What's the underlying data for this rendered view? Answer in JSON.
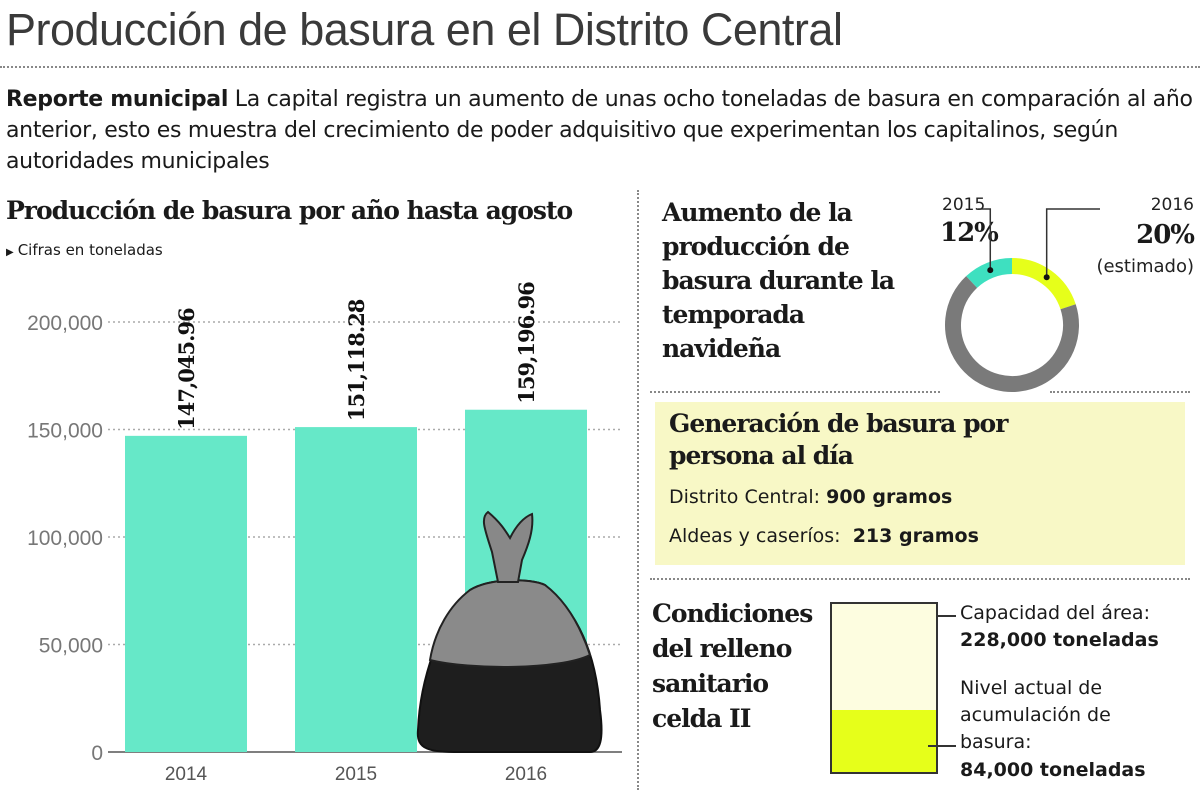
{
  "title": "Producción de basura en el Distrito Central",
  "lead": {
    "kicker": "Reporte municipal",
    "text": " La capital registra un aumento de unas ocho toneladas de basura en comparación al año anterior, esto es muestra del crecimiento de poder adquisitivo que experimentan los capitalinos, según autoridades municipales"
  },
  "colors": {
    "bar": "#66e8c8",
    "teal": "#3ee0c0",
    "yellow": "#e6ff1a",
    "gray": "#7a7a7a",
    "box": "#f8f8c6"
  },
  "chart_data": [
    {
      "type": "bar",
      "title": "Producción de basura por año hasta agosto",
      "subtitle": "Cifras en toneladas",
      "categories": [
        "2014",
        "2015",
        "2016"
      ],
      "values": [
        147045.96,
        151118.28,
        159196.96
      ],
      "value_labels": [
        "147,045.96",
        "151,118.28",
        "159,196.96"
      ],
      "ylim": [
        0,
        200000
      ],
      "yticks": [
        0,
        50000,
        100000,
        150000,
        200000
      ],
      "ytick_labels": [
        "0",
        "50,000",
        "100,000",
        "150,000",
        "200,000"
      ],
      "grid": true,
      "illustration": "trash-bag"
    },
    {
      "type": "pie",
      "title": "Aumento de la producción de basura durante la temporada navideña",
      "variant": "donut",
      "slices": [
        {
          "label": "2015",
          "value": 12,
          "value_label": "12%",
          "note": "",
          "color": "#3ee0c0"
        },
        {
          "label": "2016",
          "value": 20,
          "value_label": "20%",
          "note": "(estimado)",
          "color": "#e6ff1a"
        }
      ],
      "remainder_color": "#7a7a7a"
    }
  ],
  "generation": {
    "title": "Generación de basura por persona al día",
    "rows": [
      {
        "label": "Distrito Central:",
        "value": "900 gramos"
      },
      {
        "label": "Aldeas y caseríos:",
        "value": "213 gramos"
      }
    ]
  },
  "landfill": {
    "title": "Condiciones del relleno sanitario celda II",
    "capacity_label": "Capacidad del área:",
    "capacity_value": "228,000 toneladas",
    "capacity": 228000,
    "current_label": "Nivel actual de acumulación de basura:",
    "current_value": "84,000 toneladas",
    "current": 84000
  }
}
